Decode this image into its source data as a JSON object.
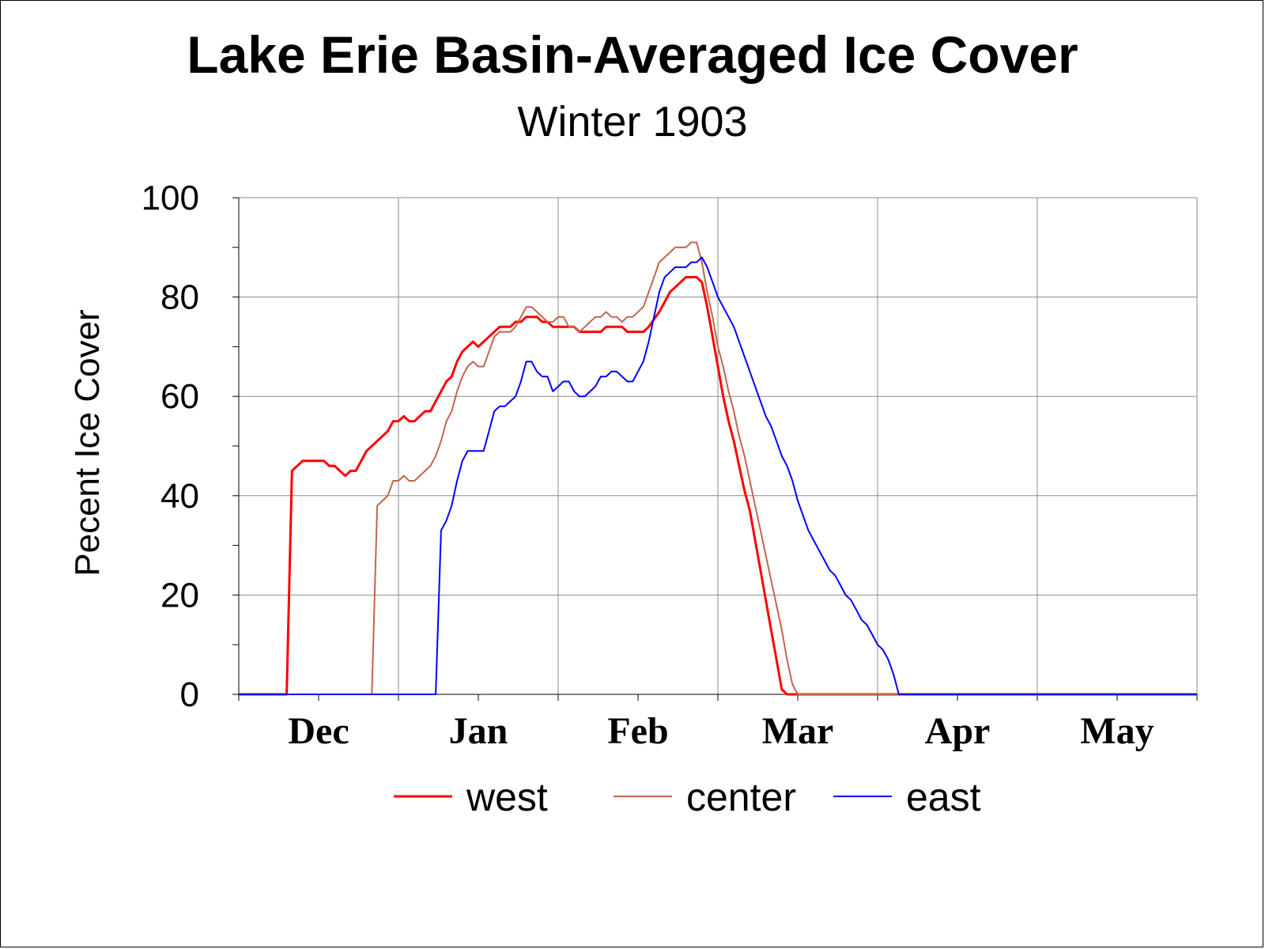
{
  "chart_data": {
    "type": "line",
    "title": "Lake Erie Basin-Averaged Ice Cover",
    "subtitle": "Winter 1903",
    "xlabel": "",
    "ylabel": "Pecent Ice Cover",
    "ylim": [
      0,
      100
    ],
    "yticks": [
      0,
      20,
      40,
      60,
      80,
      100
    ],
    "xlim": [
      0,
      180
    ],
    "x_categories": [
      "Dec",
      "Jan",
      "Feb",
      "Mar",
      "Apr",
      "May"
    ],
    "x_category_centers": [
      15,
      45,
      75,
      105,
      135,
      165
    ],
    "grid": true,
    "legend_position": "bottom",
    "series": [
      {
        "name": "west",
        "color": "#ff0000",
        "width": 3,
        "points": [
          [
            0,
            0
          ],
          [
            9,
            0
          ],
          [
            10,
            45
          ],
          [
            12,
            47
          ],
          [
            16,
            47
          ],
          [
            17,
            46
          ],
          [
            18,
            46
          ],
          [
            20,
            44
          ],
          [
            21,
            45
          ],
          [
            22,
            45
          ],
          [
            24,
            49
          ],
          [
            26,
            51
          ],
          [
            28,
            53
          ],
          [
            29,
            55
          ],
          [
            30,
            55
          ],
          [
            31,
            56
          ],
          [
            32,
            55
          ],
          [
            33,
            55
          ],
          [
            35,
            57
          ],
          [
            36,
            57
          ],
          [
            38,
            61
          ],
          [
            39,
            63
          ],
          [
            40,
            64
          ],
          [
            41,
            67
          ],
          [
            42,
            69
          ],
          [
            43,
            70
          ],
          [
            44,
            71
          ],
          [
            45,
            70
          ],
          [
            47,
            72
          ],
          [
            49,
            74
          ],
          [
            51,
            74
          ],
          [
            52,
            75
          ],
          [
            53,
            75
          ],
          [
            54,
            76
          ],
          [
            56,
            76
          ],
          [
            57,
            75
          ],
          [
            58,
            75
          ],
          [
            59,
            74
          ],
          [
            61,
            74
          ],
          [
            63,
            74
          ],
          [
            64,
            73
          ],
          [
            68,
            73
          ],
          [
            69,
            74
          ],
          [
            71,
            74
          ],
          [
            72,
            74
          ],
          [
            73,
            73
          ],
          [
            76,
            73
          ],
          [
            77,
            74
          ],
          [
            79,
            77
          ],
          [
            80,
            79
          ],
          [
            81,
            81
          ],
          [
            83,
            83
          ],
          [
            84,
            84
          ],
          [
            86,
            84
          ],
          [
            87,
            83
          ],
          [
            88,
            78
          ],
          [
            89,
            72
          ],
          [
            90,
            66
          ],
          [
            91,
            60
          ],
          [
            92,
            55
          ],
          [
            93,
            51
          ],
          [
            94,
            46
          ],
          [
            95,
            41
          ],
          [
            96,
            37
          ],
          [
            97,
            31
          ],
          [
            98,
            25
          ],
          [
            99,
            19
          ],
          [
            100,
            13
          ],
          [
            101,
            7
          ],
          [
            102,
            1
          ],
          [
            103,
            0
          ],
          [
            180,
            0
          ]
        ]
      },
      {
        "name": "center",
        "color": "#c0664a",
        "width": 2,
        "points": [
          [
            0,
            0
          ],
          [
            25,
            0
          ],
          [
            26,
            38
          ],
          [
            27,
            39
          ],
          [
            28,
            40
          ],
          [
            29,
            43
          ],
          [
            30,
            43
          ],
          [
            31,
            44
          ],
          [
            32,
            43
          ],
          [
            33,
            43
          ],
          [
            35,
            45
          ],
          [
            36,
            46
          ],
          [
            37,
            48
          ],
          [
            38,
            51
          ],
          [
            39,
            55
          ],
          [
            40,
            57
          ],
          [
            41,
            61
          ],
          [
            42,
            64
          ],
          [
            43,
            66
          ],
          [
            44,
            67
          ],
          [
            45,
            66
          ],
          [
            46,
            66
          ],
          [
            47,
            69
          ],
          [
            48,
            72
          ],
          [
            49,
            73
          ],
          [
            51,
            73
          ],
          [
            52,
            74
          ],
          [
            53,
            76
          ],
          [
            54,
            78
          ],
          [
            55,
            78
          ],
          [
            56,
            77
          ],
          [
            57,
            76
          ],
          [
            58,
            75
          ],
          [
            59,
            75
          ],
          [
            60,
            76
          ],
          [
            61,
            76
          ],
          [
            62,
            74
          ],
          [
            63,
            74
          ],
          [
            64,
            73
          ],
          [
            65,
            74
          ],
          [
            66,
            75
          ],
          [
            67,
            76
          ],
          [
            68,
            76
          ],
          [
            69,
            77
          ],
          [
            70,
            76
          ],
          [
            71,
            76
          ],
          [
            72,
            75
          ],
          [
            73,
            76
          ],
          [
            74,
            76
          ],
          [
            75,
            77
          ],
          [
            76,
            78
          ],
          [
            77,
            81
          ],
          [
            78,
            84
          ],
          [
            79,
            87
          ],
          [
            80,
            88
          ],
          [
            81,
            89
          ],
          [
            82,
            90
          ],
          [
            84,
            90
          ],
          [
            85,
            91
          ],
          [
            86,
            91
          ],
          [
            87,
            87
          ],
          [
            88,
            81
          ],
          [
            89,
            76
          ],
          [
            90,
            70
          ],
          [
            91,
            66
          ],
          [
            92,
            61
          ],
          [
            93,
            57
          ],
          [
            94,
            52
          ],
          [
            95,
            48
          ],
          [
            96,
            43
          ],
          [
            97,
            38
          ],
          [
            98,
            33
          ],
          [
            99,
            28
          ],
          [
            100,
            23
          ],
          [
            101,
            18
          ],
          [
            102,
            13
          ],
          [
            103,
            7
          ],
          [
            104,
            2
          ],
          [
            105,
            0
          ],
          [
            180,
            0
          ]
        ]
      },
      {
        "name": "east",
        "color": "#0000ff",
        "width": 2,
        "points": [
          [
            0,
            0
          ],
          [
            37,
            0
          ],
          [
            38,
            33
          ],
          [
            39,
            35
          ],
          [
            40,
            38
          ],
          [
            41,
            43
          ],
          [
            42,
            47
          ],
          [
            43,
            49
          ],
          [
            46,
            49
          ],
          [
            47,
            53
          ],
          [
            48,
            57
          ],
          [
            49,
            58
          ],
          [
            50,
            58
          ],
          [
            52,
            60
          ],
          [
            53,
            63
          ],
          [
            54,
            67
          ],
          [
            55,
            67
          ],
          [
            56,
            65
          ],
          [
            57,
            64
          ],
          [
            58,
            64
          ],
          [
            59,
            61
          ],
          [
            60,
            62
          ],
          [
            61,
            63
          ],
          [
            62,
            63
          ],
          [
            63,
            61
          ],
          [
            64,
            60
          ],
          [
            65,
            60
          ],
          [
            66,
            61
          ],
          [
            67,
            62
          ],
          [
            68,
            64
          ],
          [
            69,
            64
          ],
          [
            70,
            65
          ],
          [
            71,
            65
          ],
          [
            72,
            64
          ],
          [
            73,
            63
          ],
          [
            74,
            63
          ],
          [
            75,
            65
          ],
          [
            76,
            67
          ],
          [
            77,
            71
          ],
          [
            78,
            76
          ],
          [
            79,
            81
          ],
          [
            80,
            84
          ],
          [
            81,
            85
          ],
          [
            82,
            86
          ],
          [
            84,
            86
          ],
          [
            85,
            87
          ],
          [
            86,
            87
          ],
          [
            87,
            88
          ],
          [
            88,
            86
          ],
          [
            89,
            83
          ],
          [
            90,
            80
          ],
          [
            91,
            78
          ],
          [
            92,
            76
          ],
          [
            93,
            74
          ],
          [
            94,
            71
          ],
          [
            95,
            68
          ],
          [
            96,
            65
          ],
          [
            97,
            62
          ],
          [
            98,
            59
          ],
          [
            99,
            56
          ],
          [
            100,
            54
          ],
          [
            101,
            51
          ],
          [
            102,
            48
          ],
          [
            103,
            46
          ],
          [
            104,
            43
          ],
          [
            105,
            39
          ],
          [
            106,
            36
          ],
          [
            107,
            33
          ],
          [
            108,
            31
          ],
          [
            109,
            29
          ],
          [
            110,
            27
          ],
          [
            111,
            25
          ],
          [
            112,
            24
          ],
          [
            113,
            22
          ],
          [
            114,
            20
          ],
          [
            115,
            19
          ],
          [
            116,
            17
          ],
          [
            117,
            15
          ],
          [
            118,
            14
          ],
          [
            119,
            12
          ],
          [
            120,
            10
          ],
          [
            121,
            9
          ],
          [
            122,
            7
          ],
          [
            123,
            4
          ],
          [
            124,
            0
          ],
          [
            180,
            0
          ]
        ]
      }
    ]
  }
}
